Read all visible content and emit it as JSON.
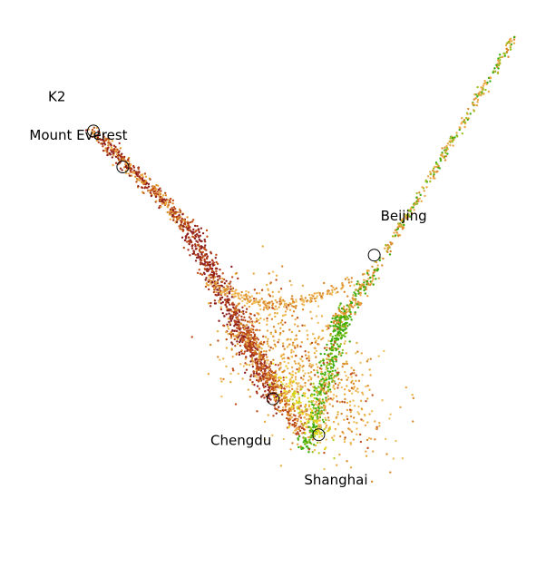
{
  "chart_data": {
    "type": "scatter",
    "title": "",
    "xlabel": "",
    "ylabel": "",
    "axes_visible": false,
    "grid": false,
    "legend": "none",
    "colors": {
      "dark_red": "#8b1e1e",
      "red_brown": "#a8321a",
      "rust": "#c0501a",
      "orange": "#d98a2a",
      "light_orange": "#eaa845",
      "yellow": "#f2e01a",
      "green": "#3aaa0a",
      "marker_edge": "#000000"
    },
    "annotations": [
      {
        "label": "K2",
        "x": -2.75,
        "y": 2.55
      },
      {
        "label": "Mount Everest",
        "x": -2.3,
        "y": 2.0
      },
      {
        "label": "Beijing",
        "x": 1.55,
        "y": 0.65
      },
      {
        "label": "Chengdu",
        "x": 0.0,
        "y": -1.55
      },
      {
        "label": "Shanghai",
        "x": 0.7,
        "y": -2.1
      }
    ],
    "branches": [
      {
        "name": "left-upper",
        "from": [
          -2.75,
          2.55
        ],
        "to": [
          -1.3,
          1.1
        ],
        "spread": 0.05,
        "n": 420,
        "palette": [
          "#8b1e1e",
          "#a8321a",
          "#c0501a",
          "#d98a2a",
          "#eaa845"
        ]
      },
      {
        "name": "left-lower",
        "from": [
          -1.3,
          1.1
        ],
        "to": [
          0.05,
          -1.6
        ],
        "spread": 0.09,
        "n": 650,
        "palette": [
          "#8b1e1e",
          "#a8321a",
          "#c0501a",
          "#8b1e1e"
        ]
      },
      {
        "name": "rust-band",
        "from": [
          -0.6,
          -0.2
        ],
        "to": [
          0.45,
          -2.1
        ],
        "spread": 0.07,
        "n": 320,
        "palette": [
          "#c0501a",
          "#d98a2a",
          "#b8441a"
        ]
      },
      {
        "name": "right-upper",
        "from": [
          3.7,
          4.0
        ],
        "to": [
          1.55,
          0.4
        ],
        "spread": 0.03,
        "n": 300,
        "palette": [
          "#eaa845",
          "#d98a2a",
          "#eaa845",
          "#3aaa0a",
          "#9cc020"
        ]
      },
      {
        "name": "right-lower",
        "from": [
          1.55,
          0.4
        ],
        "to": [
          0.9,
          -0.5
        ],
        "spread": 0.06,
        "n": 180,
        "palette": [
          "#eaa845",
          "#d98a2a",
          "#3aaa0a"
        ]
      },
      {
        "name": "green-spine",
        "from": [
          1.1,
          -0.2
        ],
        "to": [
          0.5,
          -2.3
        ],
        "spread": 0.07,
        "n": 380,
        "palette": [
          "#3aaa0a",
          "#3aaa0a",
          "#5ab810",
          "#9cc020"
        ]
      },
      {
        "name": "center-fill",
        "from": [
          -0.3,
          -0.3
        ],
        "to": [
          1.2,
          -1.9
        ],
        "spread": 0.42,
        "n": 750,
        "palette": [
          "#eaa845",
          "#d98a2a",
          "#f0c060",
          "#c0501a",
          "#e8b040"
        ]
      },
      {
        "name": "arc-top",
        "from": [
          -1.0,
          0.25
        ],
        "to": [
          1.2,
          0.25
        ],
        "spread": 0.05,
        "n": 220,
        "palette": [
          "#eaa845",
          "#d98a2a",
          "#f0c060"
        ]
      },
      {
        "name": "yellow-patch",
        "from": [
          0.05,
          -1.1
        ],
        "to": [
          0.8,
          -2.2
        ],
        "spread": 0.12,
        "n": 160,
        "palette": [
          "#f2e01a",
          "#e8d020",
          "#f0c060",
          "#b8d020"
        ]
      }
    ]
  }
}
